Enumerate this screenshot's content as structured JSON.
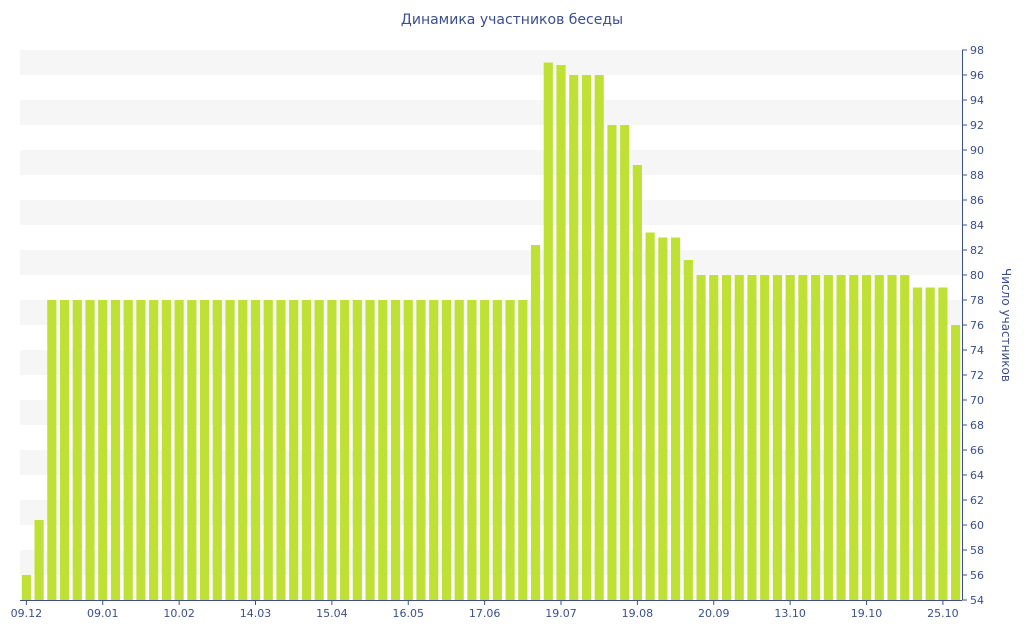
{
  "chart_data": {
    "type": "bar",
    "title": "Динамика участников беседы",
    "ylabel": "Число участников",
    "xlabel": "",
    "ylim": [
      54,
      98
    ],
    "ytick_step": 2,
    "grid": "horizontal-bands",
    "y_axis_position": "right",
    "bar_color": "#bfe135",
    "x_tick_labels": [
      "09.12",
      "09.01",
      "10.02",
      "14.03",
      "15.04",
      "16.05",
      "17.06",
      "19.07",
      "19.08",
      "20.09",
      "13.10",
      "19.10",
      "25.10"
    ],
    "x_tick_positions": [
      0,
      6,
      12,
      18,
      24,
      30,
      36,
      42,
      48,
      54,
      60,
      66,
      72
    ],
    "values": [
      56,
      60.4,
      78,
      78,
      78,
      78,
      78,
      78,
      78,
      78,
      78,
      78,
      78,
      78,
      78,
      78,
      78,
      78,
      78,
      78,
      78,
      78,
      78,
      78,
      78,
      78,
      78,
      78,
      78,
      78,
      78,
      78,
      78,
      78,
      78,
      78,
      78,
      78,
      78,
      78,
      82.4,
      97,
      96.8,
      96,
      96,
      96,
      92,
      92,
      88.8,
      83.4,
      83,
      83,
      81.2,
      80,
      80,
      80,
      80,
      80,
      80,
      80,
      80,
      80,
      80,
      80,
      80,
      80,
      80,
      80,
      80,
      80,
      79,
      79,
      79,
      76
    ]
  }
}
